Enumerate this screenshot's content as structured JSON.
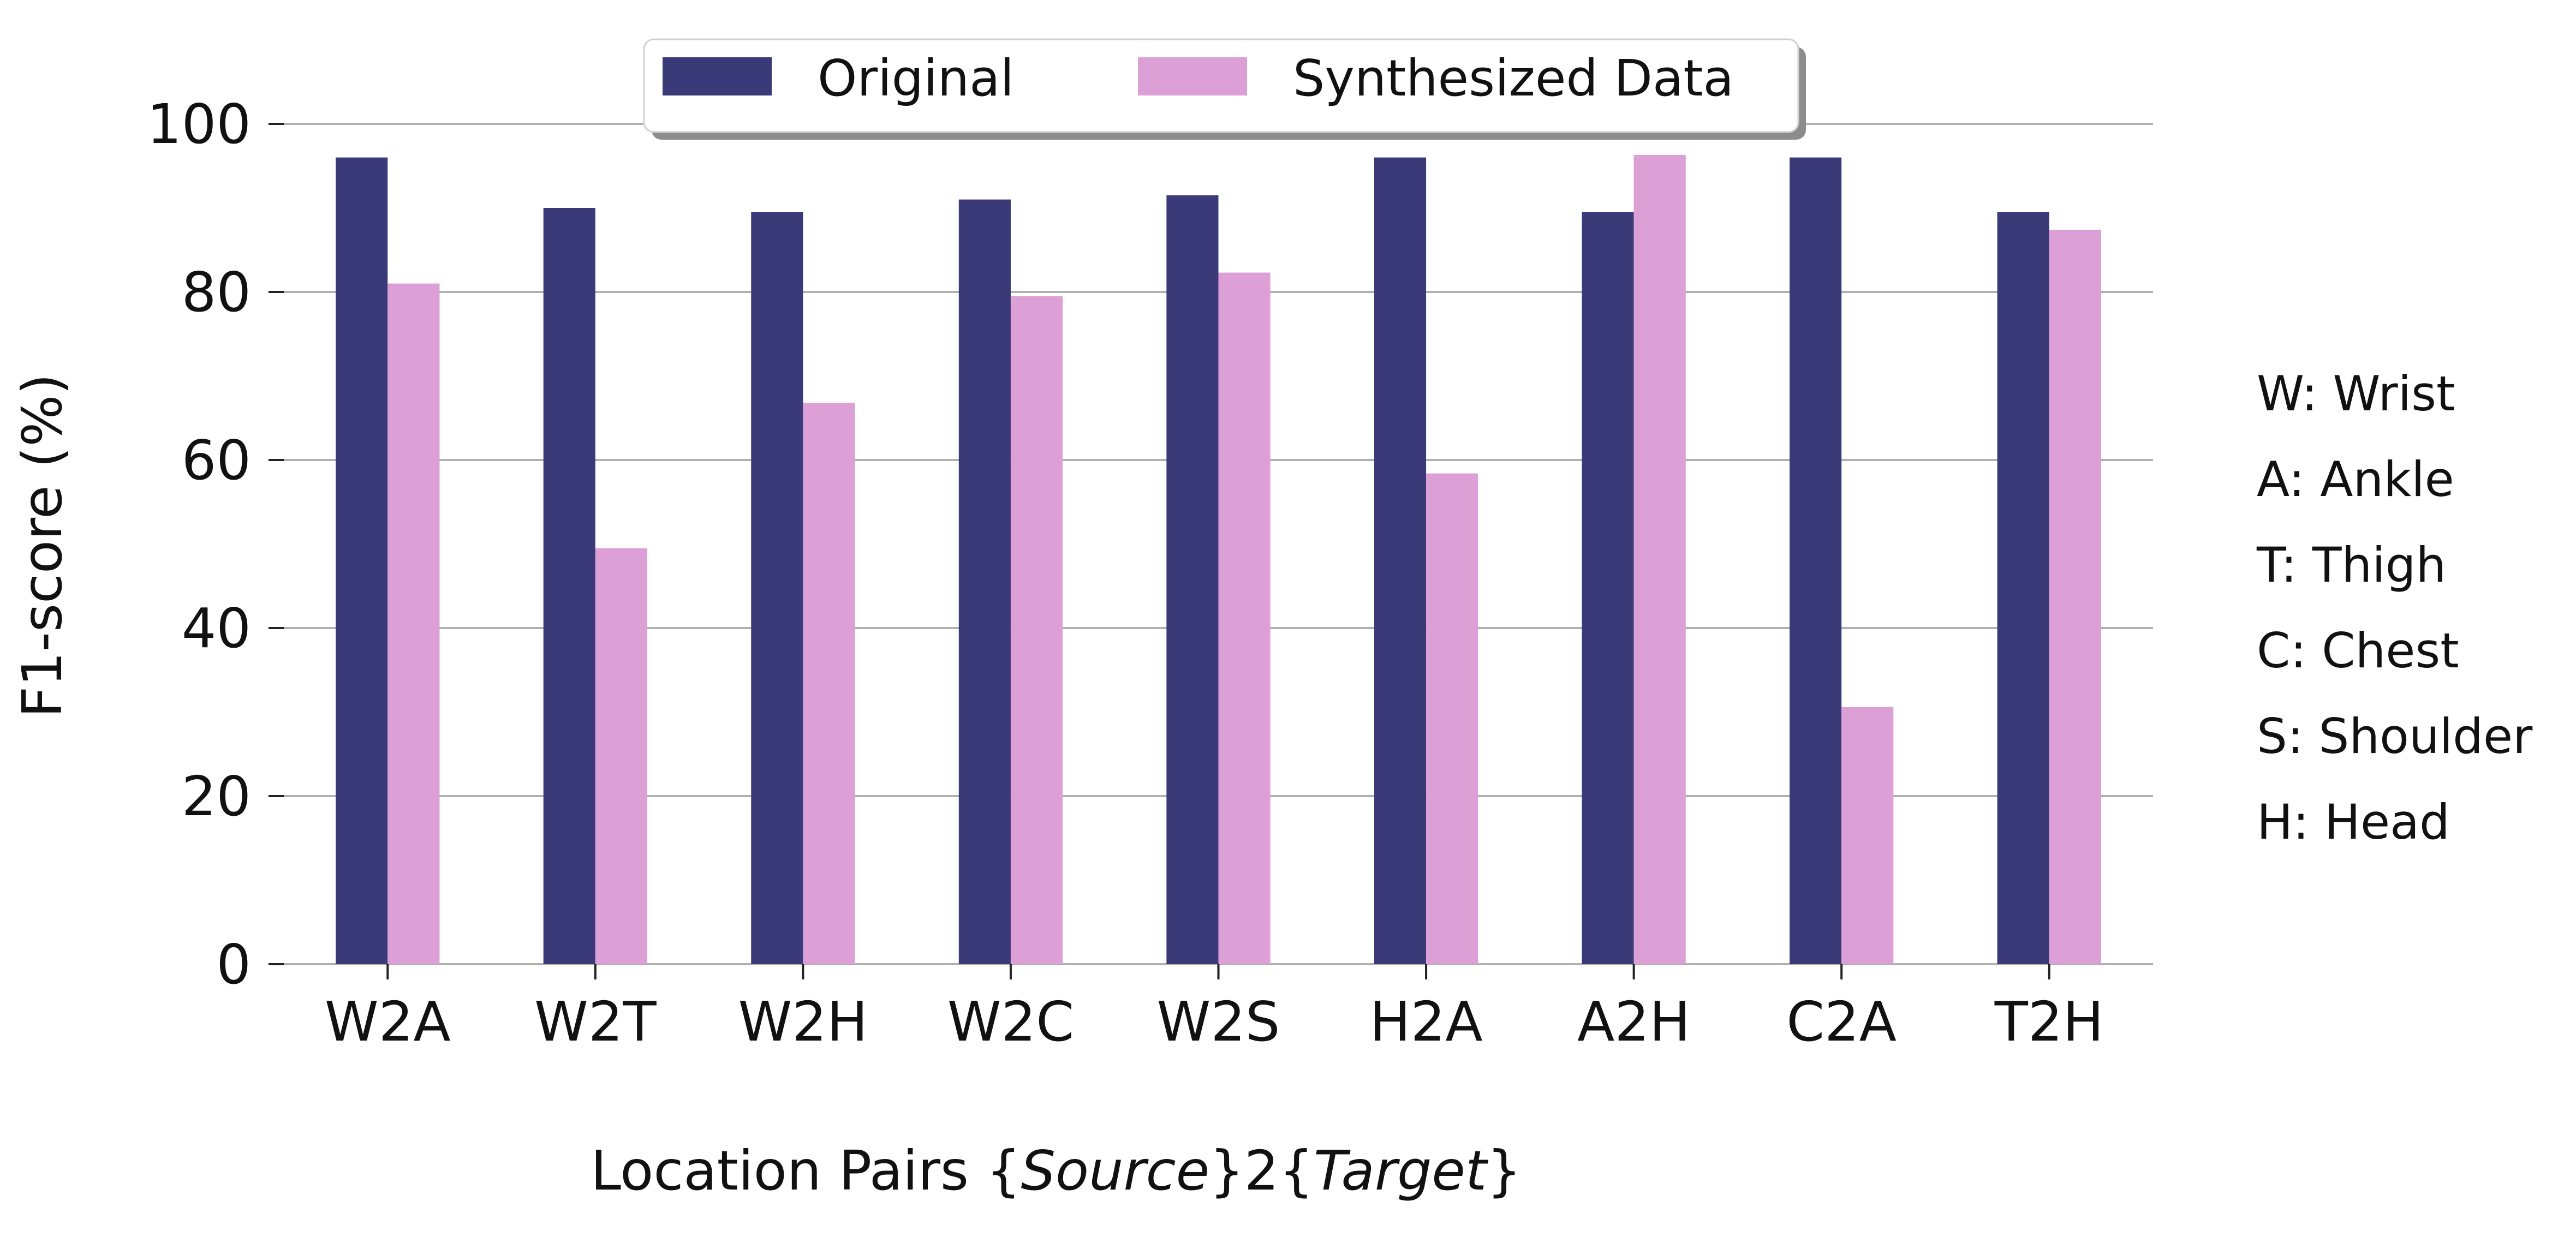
{
  "chart_data": {
    "type": "bar",
    "categories": [
      "W2A",
      "W2T",
      "W2H",
      "W2C",
      "W2S",
      "H2A",
      "A2H",
      "C2A",
      "T2H"
    ],
    "series": [
      {
        "name": "Original",
        "color": "#3a3a78",
        "values": [
          96.0,
          90.0,
          89.5,
          91.0,
          91.5,
          96.0,
          89.5,
          96.0,
          89.5
        ]
      },
      {
        "name": "Synthesized Data",
        "color": "#dda0d6",
        "values": [
          81.0,
          49.5,
          66.8,
          79.5,
          82.3,
          58.4,
          96.3,
          30.6,
          87.4
        ]
      }
    ],
    "ylabel": "F1-score (%)",
    "xlabel_parts": [
      {
        "text": "Location Pairs {",
        "italic": false
      },
      {
        "text": "Source",
        "italic": true
      },
      {
        "text": "}2{",
        "italic": false
      },
      {
        "text": "Target",
        "italic": true
      },
      {
        "text": "}",
        "italic": false
      }
    ],
    "ylim": [
      0,
      100
    ],
    "yticks": [
      0,
      20,
      40,
      60,
      80,
      100
    ],
    "grid": true,
    "legend_position": "top-center",
    "annotations": [
      "W: Wrist",
      "A: Ankle",
      "T: Thigh",
      "C: Chest",
      "S: Shoulder",
      "H: Head"
    ]
  }
}
